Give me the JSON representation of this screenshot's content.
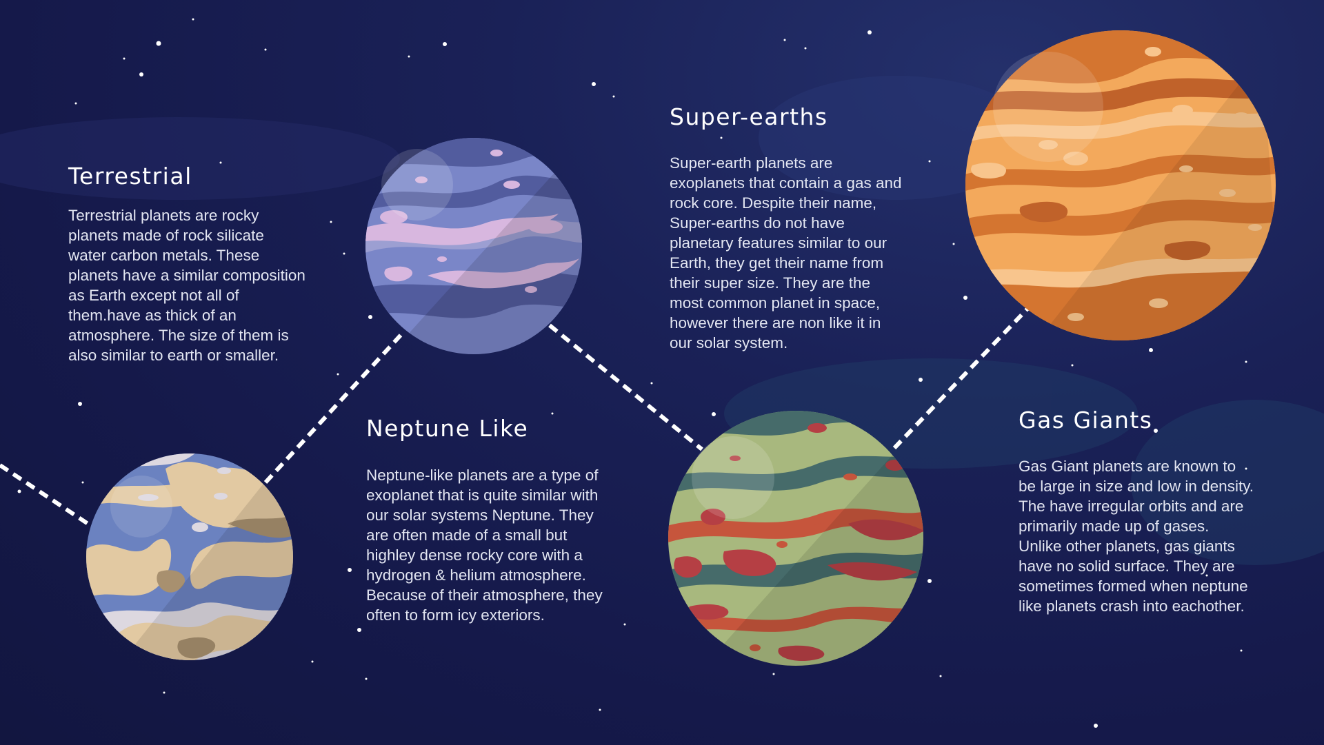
{
  "sections": {
    "terrestrial": {
      "title": "Terrestrial",
      "body": "Terrestrial planets are rocky planets made of rock silicate water carbon metals. These planets have a similar composition as Earth except not all of them.have as thick of an atmosphere. The size of them is also similar to earth or smaller."
    },
    "neptune_like": {
      "title": "Neptune Like",
      "body": "Neptune-like planets are a type of exoplanet that is quite similar with our solar systems Neptune. They are often made of a small but highley dense rocky core with a hydrogen & helium atmosphere. Because of their atmosphere, they often to form icy exteriors."
    },
    "super_earths": {
      "title": "Super-earths",
      "body": "Super-earth planets are exoplanets that contain a gas and rock core. Despite their name, Super-earths do not have planetary features similar to our Earth, they get their name from their super size. They are the most common planet in space, however there are non like it in our solar system."
    },
    "gas_giants": {
      "title": "Gas Giants",
      "body": "Gas Giant planets are known to be large in size and low in density. The have irregular orbits and are primarily made up of gases. Unlike other planets, gas giants have no solid surface. They are sometimes formed when neptune like planets crash into eachother."
    }
  },
  "colors": {
    "background": "#17194a",
    "text": "#e3e6f2",
    "connector": "#ffffff",
    "terrestrial_planet": [
      "#6b82c0",
      "#e2c9a2",
      "#a8906f",
      "#ddd8e0"
    ],
    "neptune_planet": [
      "#7a86c8",
      "#525c9e",
      "#d8b7df",
      "#9c9fd2"
    ],
    "super_earth_planet": [
      "#a8b87e",
      "#466b6a",
      "#c6553c",
      "#b53f44"
    ],
    "gas_giant_planet": [
      "#f3a95c",
      "#d47530",
      "#f8c58d",
      "#c0622a"
    ]
  }
}
